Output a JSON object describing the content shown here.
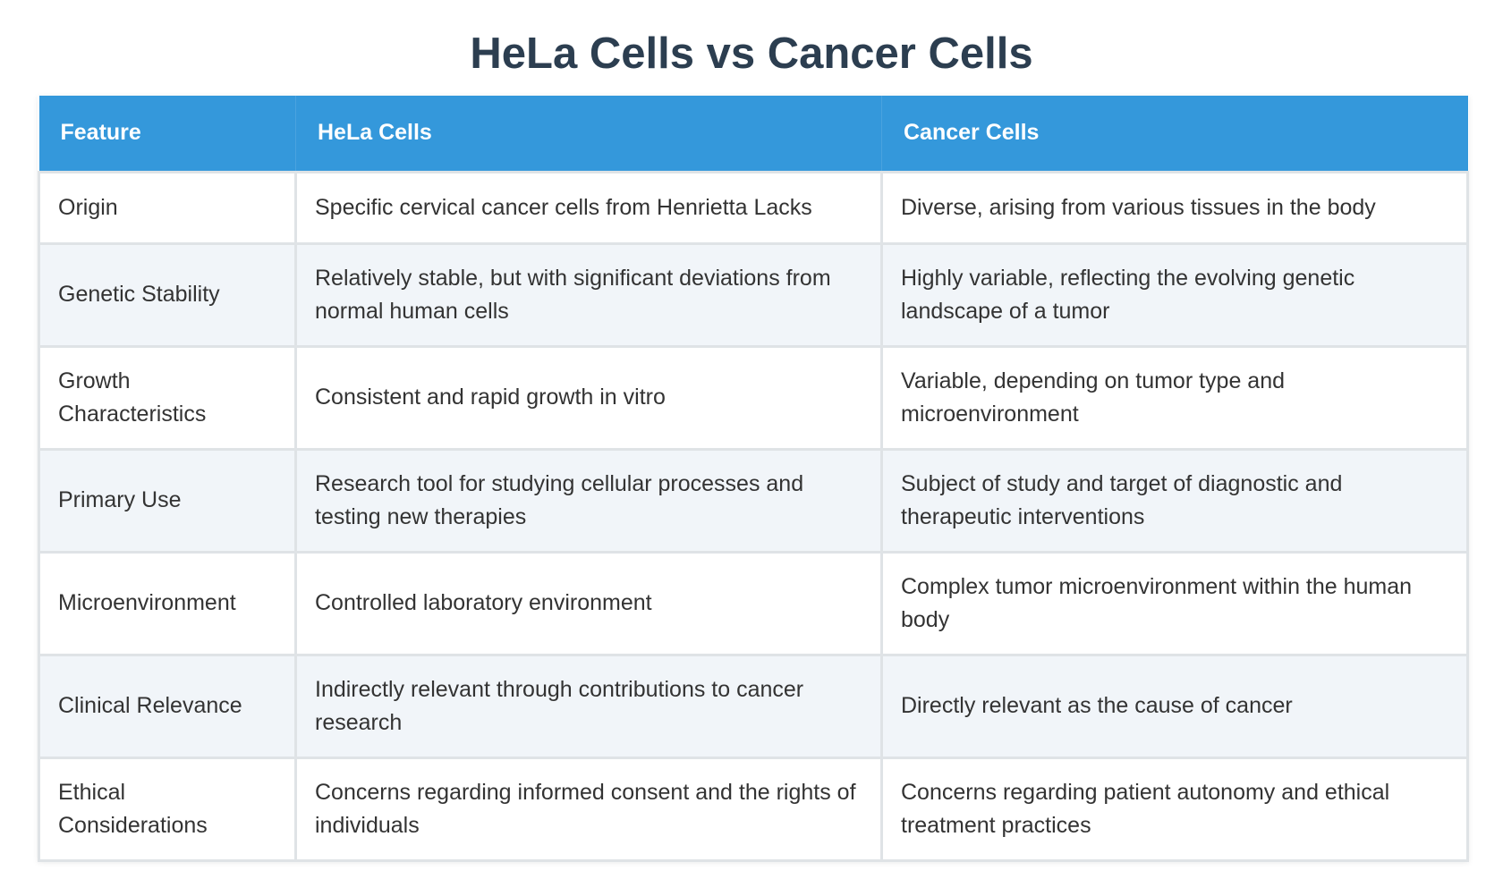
{
  "title": "HeLa Cells vs Cancer Cells",
  "table": {
    "headers": [
      "Feature",
      "HeLa Cells",
      "Cancer Cells"
    ],
    "rows": [
      [
        "Origin",
        "Specific cervical cancer cells from Henrietta Lacks",
        "Diverse, arising from various tissues in the body"
      ],
      [
        "Genetic Stability",
        "Relatively stable, but with significant deviations from normal human cells",
        "Highly variable, reflecting the evolving genetic landscape of a tumor"
      ],
      [
        "Growth Characteristics",
        "Consistent and rapid growth in vitro",
        "Variable, depending on tumor type and microenvironment"
      ],
      [
        "Primary Use",
        "Research tool for studying cellular processes and testing new therapies",
        "Subject of study and target of diagnostic and therapeutic interventions"
      ],
      [
        "Microenvironment",
        "Controlled laboratory environment",
        "Complex tumor microenvironment within the human body"
      ],
      [
        "Clinical Relevance",
        "Indirectly relevant through contributions to cancer research",
        "Directly relevant as the cause of cancer"
      ],
      [
        "Ethical Considerations",
        "Concerns regarding informed consent and the rights of individuals",
        "Concerns regarding patient autonomy and ethical treatment practices"
      ]
    ]
  },
  "colors": {
    "header_bg": "#3498db",
    "title": "#2c3e50",
    "row_alt": "#f1f5f9"
  }
}
